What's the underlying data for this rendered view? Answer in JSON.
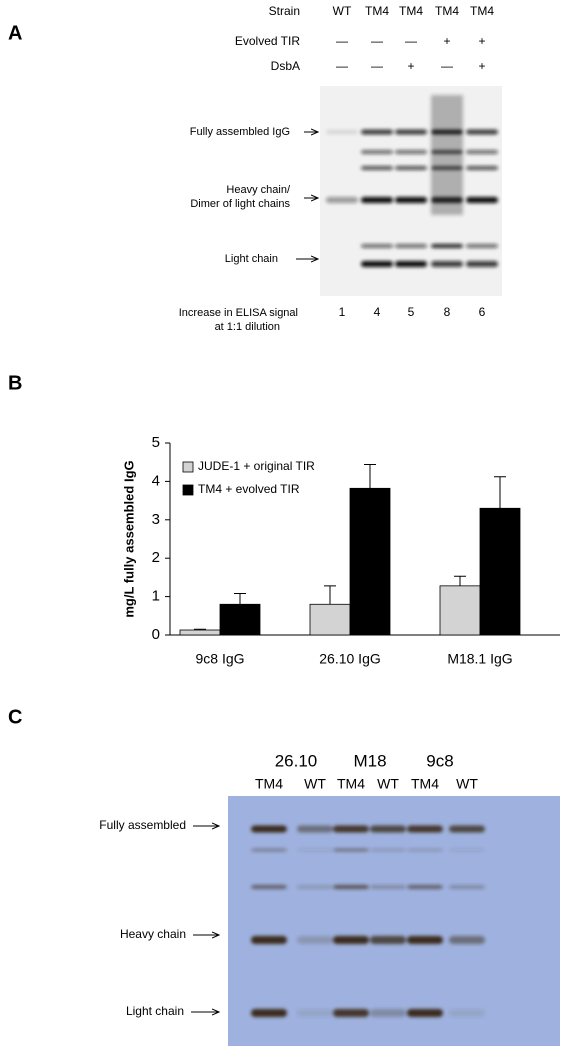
{
  "panel_a": {
    "label": "A",
    "rows": [
      {
        "name": "Strain",
        "lanes": [
          "WT",
          "TM4",
          "TM4",
          "TM4",
          "TM4"
        ]
      },
      {
        "name": "Evolved TIR",
        "lanes": [
          "—",
          "—",
          "—",
          "+",
          "+"
        ]
      },
      {
        "name": "DsbA",
        "lanes": [
          "—",
          "—",
          "+",
          "—",
          "+"
        ]
      }
    ],
    "bands": {
      "fully_assembled": "Fully assembled IgG",
      "heavy_chain": [
        "Heavy chain/",
        "Dimer of light chains"
      ],
      "light_chain": "Light chain"
    },
    "elisa": {
      "label": [
        "Increase in ELISA signal",
        "at 1:1 dilution"
      ],
      "values": [
        1,
        4,
        5,
        8,
        6
      ]
    }
  },
  "chart_data": {
    "type": "bar",
    "label": "B",
    "ylabel": "mg/L fully assembled IgG",
    "categories": [
      "9c8 IgG",
      "26.10 IgG",
      "M18.1 IgG"
    ],
    "series": [
      {
        "name": "JUDE-1 + original TIR",
        "color": "#d3d3d3",
        "values": [
          0.13,
          0.8,
          1.28
        ],
        "errors": [
          0.02,
          0.48,
          0.25
        ]
      },
      {
        "name": "TM4 + evolved TIR",
        "color": "#000000",
        "values": [
          0.8,
          3.82,
          3.3
        ],
        "errors": [
          0.28,
          0.62,
          0.82
        ]
      }
    ],
    "ylim": [
      0,
      5
    ],
    "yticks": [
      0,
      1,
      2,
      3,
      4,
      5
    ],
    "grid": false
  },
  "panel_c": {
    "label": "C",
    "groups": [
      "26.10",
      "M18",
      "9c8"
    ],
    "lanes": [
      "TM4",
      "WT",
      "TM4",
      "WT",
      "TM4",
      "WT"
    ],
    "bands": {
      "fully_assembled": "Fully assembled",
      "heavy_chain": "Heavy chain",
      "light_chain": "Light chain"
    }
  }
}
